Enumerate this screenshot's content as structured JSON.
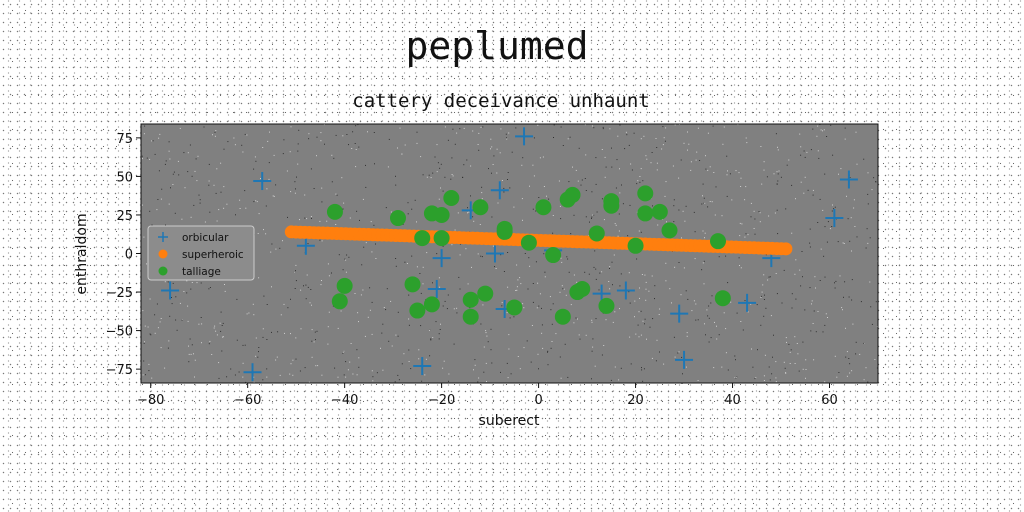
{
  "chart_data": {
    "type": "scatter",
    "title": "peplumed",
    "subtitle": "cattery deceivance unhaunt",
    "xlabel": "suberect",
    "ylabel": "enthraldom",
    "xlim": [
      -82,
      70
    ],
    "ylim": [
      -84,
      84
    ],
    "xticks": [
      -80,
      -60,
      -40,
      -20,
      0,
      20,
      40,
      60
    ],
    "yticks": [
      -75,
      -50,
      -25,
      0,
      25,
      50,
      75
    ],
    "grid": false,
    "legend_position": "center-left",
    "plot_background": "#808080",
    "series": [
      {
        "name": "orbicular",
        "marker": "plus",
        "color": "#1f77b4",
        "points": [
          [
            -3,
            76
          ],
          [
            -57,
            47
          ],
          [
            64,
            48
          ],
          [
            -8,
            41
          ],
          [
            -14,
            28
          ],
          [
            61,
            23
          ],
          [
            -20,
            -3
          ],
          [
            -9,
            0
          ],
          [
            48,
            -3
          ],
          [
            -76,
            -24
          ],
          [
            -21,
            -23
          ],
          [
            13,
            -26
          ],
          [
            18,
            -24
          ],
          [
            43,
            -32
          ],
          [
            29,
            -39
          ],
          [
            -24,
            -73
          ],
          [
            -59,
            -77
          ],
          [
            30,
            -69
          ],
          [
            -48,
            5
          ],
          [
            3,
            2
          ],
          [
            -7,
            -36
          ]
        ]
      },
      {
        "name": "superheroic",
        "marker": "circle",
        "color": "#ff7f0e",
        "line": {
          "x_start": -51,
          "y_start": 14,
          "x_end": 51,
          "y_end": 3
        }
      },
      {
        "name": "talliage",
        "marker": "circle",
        "color": "#2ca02c",
        "points": [
          [
            -42,
            27
          ],
          [
            -29,
            23
          ],
          [
            -22,
            26
          ],
          [
            -20,
            25
          ],
          [
            -18,
            36
          ],
          [
            -12,
            30
          ],
          [
            -7,
            16
          ],
          [
            -7,
            14
          ],
          [
            -24,
            10
          ],
          [
            -20,
            10
          ],
          [
            -2,
            7
          ],
          [
            3,
            -1
          ],
          [
            1,
            30
          ],
          [
            6,
            35
          ],
          [
            7,
            38
          ],
          [
            15,
            31
          ],
          [
            15,
            34
          ],
          [
            22,
            39
          ],
          [
            22,
            26
          ],
          [
            25,
            27
          ],
          [
            27,
            15
          ],
          [
            12,
            13
          ],
          [
            20,
            5
          ],
          [
            37,
            8
          ],
          [
            -40,
            -21
          ],
          [
            -41,
            -31
          ],
          [
            -26,
            -20
          ],
          [
            -25,
            -37
          ],
          [
            -22,
            -33
          ],
          [
            -14,
            -30
          ],
          [
            -11,
            -26
          ],
          [
            -14,
            -41
          ],
          [
            -5,
            -35
          ],
          [
            5,
            -41
          ],
          [
            8,
            -25
          ],
          [
            9,
            -23
          ],
          [
            14,
            -34
          ],
          [
            38,
            -29
          ]
        ]
      }
    ]
  }
}
